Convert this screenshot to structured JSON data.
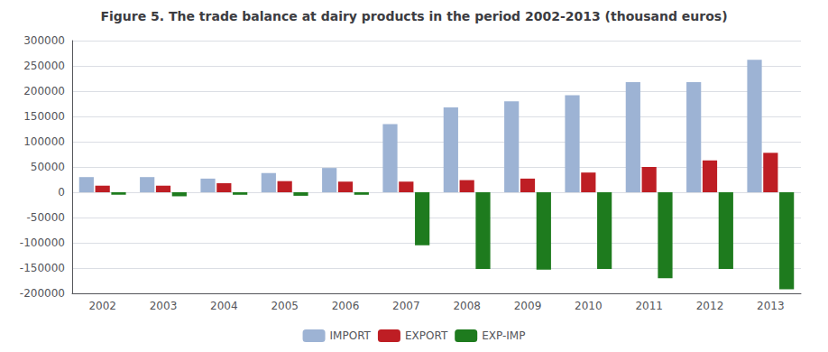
{
  "chart_data": {
    "type": "bar",
    "title": "Figure 5. The trade balance at dairy products in the period 2002-2013 (thousand euros)",
    "categories": [
      "2002",
      "2003",
      "2004",
      "2005",
      "2006",
      "2007",
      "2008",
      "2009",
      "2010",
      "2011",
      "2012",
      "2013"
    ],
    "series": [
      {
        "name": "IMPORT",
        "color": "#9db3d4",
        "values": [
          30000,
          30000,
          27000,
          38000,
          48000,
          135000,
          168000,
          180000,
          192000,
          218000,
          218000,
          262000
        ]
      },
      {
        "name": "EXPORT",
        "color": "#be1e24",
        "values": [
          13000,
          13000,
          18000,
          22000,
          21000,
          21000,
          24000,
          27000,
          39000,
          50000,
          63000,
          78000
        ]
      },
      {
        "name": "EXP-IMP",
        "color": "#1e7b1e",
        "values": [
          -5000,
          -8000,
          -5000,
          -7000,
          -5000,
          -105000,
          -152000,
          -153000,
          -152000,
          -170000,
          -152000,
          -192000
        ]
      }
    ],
    "ylim": [
      -200000,
      300000
    ],
    "yticks": [
      -200000,
      -150000,
      -100000,
      -50000,
      0,
      50000,
      100000,
      150000,
      200000,
      250000,
      300000
    ],
    "grid": true,
    "legend": "bottom"
  }
}
